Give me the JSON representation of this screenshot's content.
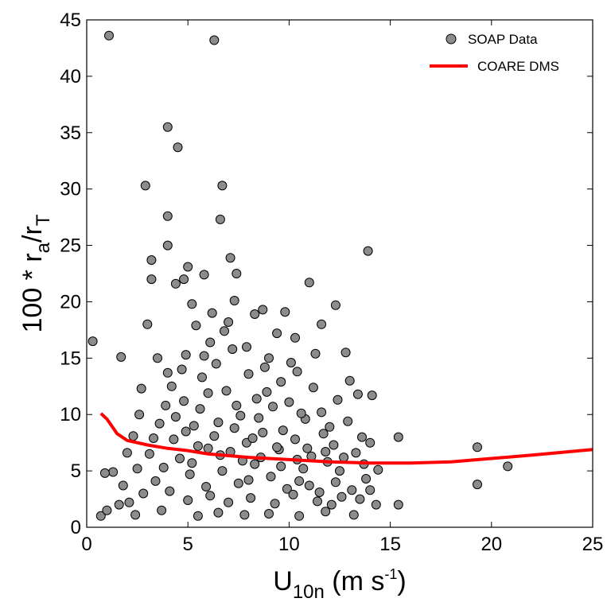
{
  "chart_data": {
    "type": "scatter",
    "xlim": [
      0,
      25
    ],
    "ylim": [
      0,
      45
    ],
    "x_ticks": [
      0,
      5,
      10,
      15,
      20,
      25
    ],
    "y_ticks": [
      0,
      5,
      10,
      15,
      20,
      25,
      30,
      35,
      40,
      45
    ],
    "xlabel": {
      "base": "U",
      "sub": "10n",
      "units_pre": " (m s",
      "sup": "-1",
      "units_post": ")"
    },
    "ylabel": {
      "prefix": "100 * r",
      "sub1": "a",
      "mid": "/r",
      "sub2": "T"
    },
    "grid": false,
    "legend_position": "top-right",
    "legend": [
      {
        "label": "SOAP Data",
        "marker": "circle"
      },
      {
        "label": "COARE DMS",
        "marker": "line"
      }
    ],
    "colors": {
      "points_fill": "#8c8c8c",
      "points_edge": "#000000",
      "line": "#ff0000"
    },
    "series": [
      {
        "name": "SOAP Data",
        "type": "scatter",
        "points": [
          [
            1.1,
            43.6
          ],
          [
            6.3,
            43.2
          ],
          [
            4.0,
            35.5
          ],
          [
            4.5,
            33.7
          ],
          [
            2.9,
            30.3
          ],
          [
            6.7,
            30.3
          ],
          [
            4.0,
            27.6
          ],
          [
            6.6,
            27.3
          ],
          [
            4.0,
            25.0
          ],
          [
            13.9,
            24.5
          ],
          [
            3.2,
            23.7
          ],
          [
            7.1,
            23.9
          ],
          [
            5.0,
            23.1
          ],
          [
            7.4,
            22.5
          ],
          [
            5.8,
            22.4
          ],
          [
            4.8,
            22.0
          ],
          [
            3.2,
            22.0
          ],
          [
            4.4,
            21.6
          ],
          [
            11.0,
            21.7
          ],
          [
            0.3,
            16.5
          ],
          [
            1.7,
            15.1
          ],
          [
            12.3,
            19.7
          ],
          [
            7.3,
            20.1
          ],
          [
            5.2,
            19.8
          ],
          [
            3.0,
            18.0
          ],
          [
            11.6,
            18.0
          ],
          [
            0.7,
            1.0
          ],
          [
            1.0,
            1.5
          ],
          [
            1.3,
            4.9
          ],
          [
            0.9,
            4.8
          ],
          [
            14.3,
            2.0
          ],
          [
            15.4,
            2.0
          ],
          [
            15.4,
            8.0
          ],
          [
            13.6,
            8.0
          ],
          [
            14.0,
            7.5
          ],
          [
            13.4,
            11.8
          ],
          [
            14.1,
            11.7
          ],
          [
            19.3,
            7.1
          ],
          [
            19.3,
            3.8
          ],
          [
            20.8,
            5.4
          ],
          [
            13.0,
            13.0
          ],
          [
            12.8,
            15.5
          ],
          [
            3.9,
            10.8
          ],
          [
            4.2,
            12.5
          ],
          [
            4.9,
            15.3
          ],
          [
            6.1,
            16.4
          ],
          [
            8.3,
            18.9
          ],
          [
            9.4,
            17.2
          ],
          [
            10.3,
            16.8
          ],
          [
            8.7,
            19.3
          ],
          [
            2.7,
            12.3
          ],
          [
            2.3,
            8.1
          ],
          [
            1.6,
            2.0
          ],
          [
            2.1,
            2.2
          ],
          [
            2.4,
            1.1
          ],
          [
            3.7,
            1.5
          ],
          [
            5.5,
            1.0
          ],
          [
            6.5,
            1.3
          ],
          [
            7.8,
            1.1
          ],
          [
            9.0,
            1.2
          ],
          [
            10.5,
            1.0
          ],
          [
            11.8,
            1.4
          ],
          [
            13.2,
            1.1
          ],
          [
            3.1,
            6.5
          ],
          [
            3.6,
            9.2
          ],
          [
            4.3,
            7.8
          ],
          [
            4.8,
            11.2
          ],
          [
            5.3,
            9.0
          ],
          [
            5.7,
            13.3
          ],
          [
            6.0,
            11.9
          ],
          [
            6.4,
            14.5
          ],
          [
            6.9,
            12.1
          ],
          [
            7.2,
            15.8
          ],
          [
            7.6,
            9.9
          ],
          [
            8.0,
            13.6
          ],
          [
            8.4,
            11.4
          ],
          [
            8.8,
            14.2
          ],
          [
            9.2,
            10.7
          ],
          [
            9.6,
            12.9
          ],
          [
            10.0,
            11.1
          ],
          [
            10.4,
            13.8
          ],
          [
            10.8,
            9.6
          ],
          [
            11.2,
            12.4
          ],
          [
            11.6,
            10.2
          ],
          [
            12.0,
            8.9
          ],
          [
            12.4,
            11.3
          ],
          [
            12.9,
            9.4
          ],
          [
            13.3,
            6.6
          ],
          [
            13.8,
            4.3
          ],
          [
            14.4,
            5.1
          ],
          [
            3.4,
            4.1
          ],
          [
            3.8,
            5.3
          ],
          [
            4.1,
            3.2
          ],
          [
            4.6,
            6.1
          ],
          [
            5.1,
            4.7
          ],
          [
            5.5,
            7.2
          ],
          [
            5.9,
            3.6
          ],
          [
            6.3,
            8.1
          ],
          [
            6.7,
            5.0
          ],
          [
            7.1,
            6.7
          ],
          [
            7.5,
            3.9
          ],
          [
            7.9,
            7.5
          ],
          [
            8.3,
            5.6
          ],
          [
            8.7,
            8.4
          ],
          [
            9.1,
            4.5
          ],
          [
            9.5,
            6.9
          ],
          [
            9.9,
            3.4
          ],
          [
            10.3,
            7.8
          ],
          [
            10.7,
            5.2
          ],
          [
            11.1,
            6.3
          ],
          [
            11.5,
            3.1
          ],
          [
            11.9,
            5.8
          ],
          [
            12.3,
            4.0
          ],
          [
            12.7,
            6.2
          ],
          [
            13.1,
            3.3
          ],
          [
            2.8,
            3.0
          ],
          [
            2.5,
            5.2
          ],
          [
            2.0,
            6.6
          ],
          [
            1.8,
            3.7
          ],
          [
            5.0,
            2.4
          ],
          [
            6.1,
            2.8
          ],
          [
            7.0,
            2.2
          ],
          [
            8.1,
            2.6
          ],
          [
            9.3,
            2.1
          ],
          [
            10.2,
            2.9
          ],
          [
            11.4,
            2.3
          ],
          [
            12.6,
            2.7
          ],
          [
            4.4,
            9.8
          ],
          [
            5.6,
            10.5
          ],
          [
            6.5,
            9.3
          ],
          [
            7.4,
            10.8
          ],
          [
            8.5,
            9.7
          ],
          [
            9.7,
            8.6
          ],
          [
            10.6,
            10.1
          ],
          [
            11.7,
            8.3
          ],
          [
            6.8,
            17.4
          ],
          [
            7.9,
            16.0
          ],
          [
            9.0,
            15.0
          ],
          [
            10.1,
            14.6
          ],
          [
            11.3,
            15.4
          ],
          [
            5.4,
            17.9
          ],
          [
            4.7,
            14.0
          ],
          [
            3.5,
            15.0
          ],
          [
            8.6,
            6.2
          ],
          [
            9.4,
            7.1
          ],
          [
            8.2,
            7.9
          ],
          [
            7.7,
            5.9
          ],
          [
            6.6,
            6.4
          ],
          [
            10.9,
            7.0
          ],
          [
            12.2,
            7.3
          ],
          [
            3.3,
            7.9
          ],
          [
            2.6,
            10.0
          ],
          [
            4.0,
            13.7
          ],
          [
            6.2,
            19.0
          ],
          [
            5.8,
            15.2
          ],
          [
            7.0,
            18.2
          ],
          [
            9.8,
            19.1
          ],
          [
            8.9,
            12.0
          ],
          [
            10.5,
            4.1
          ],
          [
            11.0,
            3.7
          ],
          [
            12.1,
            2.0
          ],
          [
            13.5,
            2.5
          ],
          [
            14.0,
            3.3
          ],
          [
            13.7,
            5.6
          ],
          [
            5.2,
            5.7
          ],
          [
            4.9,
            8.5
          ],
          [
            6.0,
            7.0
          ],
          [
            7.3,
            8.8
          ],
          [
            8.0,
            4.2
          ],
          [
            9.6,
            5.4
          ],
          [
            10.4,
            6.0
          ],
          [
            11.8,
            6.7
          ],
          [
            12.5,
            5.0
          ]
        ]
      },
      {
        "name": "COARE DMS",
        "type": "line",
        "x": [
          0.7,
          1.0,
          1.5,
          2.0,
          3.0,
          4.0,
          5.0,
          6.0,
          8.0,
          10.0,
          12.0,
          14.0,
          16.0,
          18.0,
          20.0,
          22.0,
          25.0
        ],
        "y": [
          10.1,
          9.6,
          8.3,
          7.7,
          7.3,
          7.0,
          6.8,
          6.5,
          6.2,
          6.0,
          5.8,
          5.7,
          5.7,
          5.8,
          6.1,
          6.4,
          6.9
        ]
      }
    ]
  }
}
